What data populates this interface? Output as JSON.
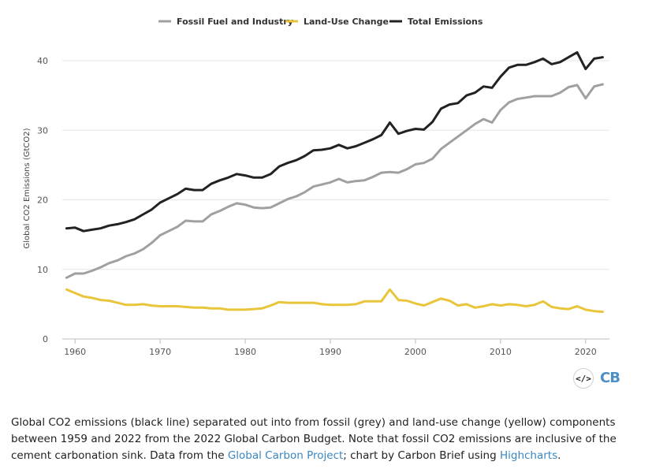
{
  "chart_data": {
    "type": "line",
    "ylabel": "Global CO2 Emissions (GtCO2)",
    "xlim": [
      1958.5,
      2022.8
    ],
    "ylim": [
      0,
      40
    ],
    "yticks": [
      0,
      10,
      20,
      30,
      40
    ],
    "xticks": [
      1960,
      1970,
      1980,
      1990,
      2000,
      2010,
      2020
    ],
    "grid": true,
    "legend_position": "top-center",
    "x": [
      1959,
      1960,
      1961,
      1962,
      1963,
      1964,
      1965,
      1966,
      1967,
      1968,
      1969,
      1970,
      1971,
      1972,
      1973,
      1974,
      1975,
      1976,
      1977,
      1978,
      1979,
      1980,
      1981,
      1982,
      1983,
      1984,
      1985,
      1986,
      1987,
      1988,
      1989,
      1990,
      1991,
      1992,
      1993,
      1994,
      1995,
      1996,
      1997,
      1998,
      1999,
      2000,
      2001,
      2002,
      2003,
      2004,
      2005,
      2006,
      2007,
      2008,
      2009,
      2010,
      2011,
      2012,
      2013,
      2014,
      2015,
      2016,
      2017,
      2018,
      2019,
      2020,
      2021,
      2022
    ],
    "series": [
      {
        "name": "Fossil Fuel and Industry",
        "color": "#a0a0a0",
        "values": [
          8.8,
          9.4,
          9.4,
          9.8,
          10.3,
          10.9,
          11.3,
          11.9,
          12.3,
          12.9,
          13.8,
          14.9,
          15.5,
          16.1,
          17.0,
          16.9,
          16.9,
          17.9,
          18.4,
          19.0,
          19.5,
          19.3,
          18.9,
          18.8,
          18.9,
          19.5,
          20.1,
          20.5,
          21.1,
          21.9,
          22.2,
          22.5,
          23.0,
          22.5,
          22.7,
          22.8,
          23.3,
          23.9,
          24.0,
          23.9,
          24.4,
          25.1,
          25.3,
          25.9,
          27.3,
          28.2,
          29.1,
          30.0,
          30.9,
          31.6,
          31.1,
          32.9,
          34.0,
          34.5,
          34.7,
          34.9,
          34.9,
          34.9,
          35.4,
          36.2,
          36.5,
          34.6,
          36.3,
          36.6
        ]
      },
      {
        "name": "Land-Use Change",
        "color": "#e8c53a",
        "values": [
          7.1,
          6.6,
          6.1,
          5.9,
          5.6,
          5.5,
          5.2,
          4.9,
          4.9,
          5.0,
          4.8,
          4.7,
          4.7,
          4.7,
          4.6,
          4.5,
          4.5,
          4.4,
          4.4,
          4.2,
          4.2,
          4.2,
          4.3,
          4.4,
          4.8,
          5.3,
          5.2,
          5.2,
          5.2,
          5.2,
          5.0,
          4.9,
          4.9,
          4.9,
          5.0,
          5.4,
          5.4,
          5.4,
          7.1,
          5.6,
          5.5,
          5.1,
          4.8,
          5.3,
          5.8,
          5.5,
          4.8,
          5.0,
          4.5,
          4.7,
          5.0,
          4.8,
          5.0,
          4.9,
          4.7,
          4.9,
          5.4,
          4.6,
          4.4,
          4.3,
          4.7,
          4.2,
          4.0,
          3.9
        ]
      },
      {
        "name": "Total Emissions",
        "color": "#222222",
        "values": [
          15.9,
          16.0,
          15.5,
          15.7,
          15.9,
          16.3,
          16.5,
          16.8,
          17.2,
          17.9,
          18.6,
          19.6,
          20.2,
          20.8,
          21.6,
          21.4,
          21.4,
          22.3,
          22.8,
          23.2,
          23.7,
          23.5,
          23.2,
          23.2,
          23.7,
          24.8,
          25.3,
          25.7,
          26.3,
          27.1,
          27.2,
          27.4,
          27.9,
          27.4,
          27.7,
          28.2,
          28.7,
          29.3,
          31.1,
          29.5,
          29.9,
          30.2,
          30.1,
          31.2,
          33.1,
          33.7,
          33.9,
          35.0,
          35.4,
          36.3,
          36.1,
          37.7,
          39.0,
          39.4,
          39.4,
          39.8,
          40.3,
          39.5,
          39.8,
          40.5,
          41.2,
          38.8,
          40.3,
          40.5
        ]
      }
    ]
  },
  "logo": {
    "embed": "</>",
    "brand": "CB"
  },
  "caption": {
    "text1": "Global CO2 emissions (black line) separated out into from fossil (grey) and land-use change (yellow) components between 1959 and 2022 from the 2022 Global Carbon Budget. Note that fossil CO2 emissions are inclusive of the cement carbonation sink. Data from the ",
    "link1": "Global Carbon Project",
    "text2": "; chart by Carbon Brief using ",
    "link2": "Highcharts",
    "text3": "."
  }
}
